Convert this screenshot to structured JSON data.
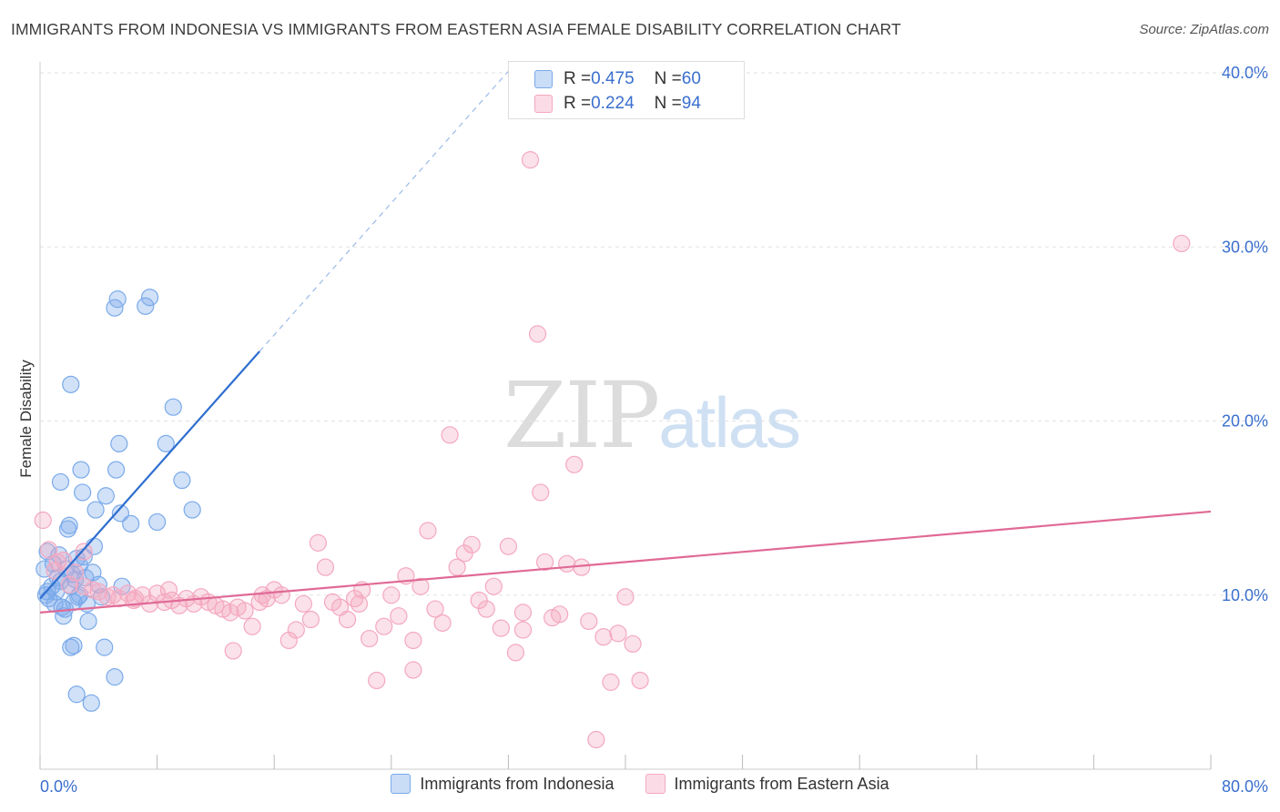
{
  "chart_data": {
    "type": "scatter",
    "title": "IMMIGRANTS FROM INDONESIA VS IMMIGRANTS FROM EASTERN ASIA FEMALE DISABILITY CORRELATION CHART",
    "source": "Source: ZipAtlas.com",
    "xlabel": "",
    "ylabel": "Female Disability",
    "xlim": [
      0,
      80
    ],
    "ylim": [
      0,
      40
    ],
    "x_tick_labels": [
      "0.0%",
      "80.0%"
    ],
    "y_ticks": [
      10,
      20,
      30,
      40
    ],
    "y_tick_labels": [
      "10.0%",
      "20.0%",
      "30.0%",
      "40.0%"
    ],
    "watermark": {
      "part1": "ZIP",
      "part2": "atlas"
    },
    "legend": {
      "rows": [
        {
          "r_label": "R = ",
          "r_value": "0.475",
          "n_label": "N = ",
          "n_value": "60"
        },
        {
          "r_label": "R = ",
          "r_value": "0.224",
          "n_label": "N = ",
          "n_value": "94"
        }
      ]
    },
    "series": [
      {
        "name": "Immigrants from Indonesia",
        "color": "#7aaaea",
        "line_color": "#2f6fcf",
        "trend": {
          "x0": 0,
          "y0": 9.8,
          "x1": 15,
          "y1": 24.0,
          "dash_to_x": 32
        },
        "points": [
          [
            0.3,
            11.5
          ],
          [
            0.5,
            12.5
          ],
          [
            0.4,
            10.0
          ],
          [
            0.6,
            9.8
          ],
          [
            0.8,
            10.5
          ],
          [
            0.9,
            11.8
          ],
          [
            1.0,
            9.5
          ],
          [
            1.1,
            10.2
          ],
          [
            1.2,
            11.0
          ],
          [
            1.3,
            12.3
          ],
          [
            1.4,
            10.8
          ],
          [
            1.5,
            9.3
          ],
          [
            1.6,
            8.8
          ],
          [
            1.7,
            9.2
          ],
          [
            1.8,
            11.5
          ],
          [
            1.9,
            13.8
          ],
          [
            2.0,
            14.0
          ],
          [
            2.1,
            10.5
          ],
          [
            2.2,
            11.2
          ],
          [
            2.3,
            9.6
          ],
          [
            2.4,
            10.9
          ],
          [
            2.5,
            12.1
          ],
          [
            2.6,
            9.9
          ],
          [
            2.7,
            11.7
          ],
          [
            1.4,
            16.5
          ],
          [
            2.1,
            22.1
          ],
          [
            2.1,
            7.0
          ],
          [
            2.3,
            7.1
          ],
          [
            2.5,
            4.3
          ],
          [
            2.7,
            10.0
          ],
          [
            2.8,
            17.2
          ],
          [
            2.9,
            15.9
          ],
          [
            3.0,
            12.2
          ],
          [
            3.1,
            11.0
          ],
          [
            3.2,
            9.5
          ],
          [
            3.3,
            8.5
          ],
          [
            3.5,
            3.8
          ],
          [
            3.6,
            11.3
          ],
          [
            3.7,
            12.8
          ],
          [
            3.8,
            14.9
          ],
          [
            4.0,
            10.6
          ],
          [
            4.2,
            9.9
          ],
          [
            4.4,
            7.0
          ],
          [
            4.5,
            15.7
          ],
          [
            5.1,
            5.3
          ],
          [
            5.2,
            17.2
          ],
          [
            5.5,
            14.7
          ],
          [
            5.6,
            10.5
          ],
          [
            5.1,
            26.5
          ],
          [
            5.3,
            27.0
          ],
          [
            5.4,
            18.7
          ],
          [
            6.2,
            14.1
          ],
          [
            7.2,
            26.6
          ],
          [
            7.5,
            27.1
          ],
          [
            8.0,
            14.2
          ],
          [
            8.6,
            18.7
          ],
          [
            9.1,
            20.8
          ],
          [
            9.7,
            16.6
          ],
          [
            10.4,
            14.9
          ],
          [
            0.5,
            10.2
          ]
        ]
      },
      {
        "name": "Immigrants from Eastern Asia",
        "color": "#f4a8c0",
        "line_color": "#e06a96",
        "trend": {
          "x0": 0,
          "y0": 9.0,
          "x1": 80,
          "y1": 14.8
        },
        "points": [
          [
            0.2,
            14.3
          ],
          [
            0.6,
            12.6
          ],
          [
            1.2,
            11.9
          ],
          [
            1.6,
            12.0
          ],
          [
            2.0,
            10.6
          ],
          [
            2.4,
            11.3
          ],
          [
            3.0,
            10.5
          ],
          [
            3.6,
            10.3
          ],
          [
            4.0,
            10.2
          ],
          [
            4.6,
            9.9
          ],
          [
            5.0,
            10.0
          ],
          [
            5.4,
            9.8
          ],
          [
            6.0,
            10.1
          ],
          [
            6.4,
            9.7
          ],
          [
            7.0,
            10.0
          ],
          [
            7.5,
            9.5
          ],
          [
            8.0,
            10.1
          ],
          [
            8.5,
            9.6
          ],
          [
            9.0,
            9.7
          ],
          [
            9.5,
            9.4
          ],
          [
            10.0,
            9.8
          ],
          [
            10.5,
            9.5
          ],
          [
            11.0,
            9.9
          ],
          [
            11.5,
            9.6
          ],
          [
            12.0,
            9.4
          ],
          [
            12.5,
            9.2
          ],
          [
            13.0,
            9.0
          ],
          [
            13.5,
            9.3
          ],
          [
            14.0,
            9.1
          ],
          [
            14.5,
            8.2
          ],
          [
            15.0,
            9.6
          ],
          [
            15.5,
            9.8
          ],
          [
            16.0,
            10.3
          ],
          [
            16.5,
            10.0
          ],
          [
            17.0,
            7.4
          ],
          [
            17.5,
            8.0
          ],
          [
            18.0,
            9.5
          ],
          [
            18.5,
            8.6
          ],
          [
            19.0,
            13.0
          ],
          [
            19.5,
            11.6
          ],
          [
            20.0,
            9.6
          ],
          [
            20.5,
            9.3
          ],
          [
            21.0,
            8.6
          ],
          [
            21.5,
            9.8
          ],
          [
            22.0,
            10.3
          ],
          [
            22.5,
            7.5
          ],
          [
            23.0,
            5.1
          ],
          [
            23.5,
            8.2
          ],
          [
            24.0,
            10.0
          ],
          [
            24.5,
            8.8
          ],
          [
            25.0,
            11.1
          ],
          [
            25.5,
            7.4
          ],
          [
            26.0,
            10.5
          ],
          [
            26.5,
            13.7
          ],
          [
            27.0,
            9.2
          ],
          [
            27.5,
            8.4
          ],
          [
            28.0,
            19.2
          ],
          [
            28.5,
            11.6
          ],
          [
            29.0,
            12.4
          ],
          [
            29.5,
            12.9
          ],
          [
            30.0,
            9.7
          ],
          [
            30.5,
            9.2
          ],
          [
            31.0,
            10.5
          ],
          [
            31.5,
            8.1
          ],
          [
            32.0,
            12.8
          ],
          [
            32.5,
            6.7
          ],
          [
            33.0,
            9.0
          ],
          [
            33.5,
            35.0
          ],
          [
            34.0,
            25.0
          ],
          [
            34.2,
            15.9
          ],
          [
            34.5,
            11.9
          ],
          [
            35.0,
            8.7
          ],
          [
            35.5,
            8.9
          ],
          [
            36.0,
            11.8
          ],
          [
            36.5,
            17.5
          ],
          [
            37.0,
            11.6
          ],
          [
            37.5,
            8.5
          ],
          [
            38.0,
            1.7
          ],
          [
            38.5,
            7.6
          ],
          [
            39.0,
            5.0
          ],
          [
            39.5,
            7.8
          ],
          [
            40.0,
            9.9
          ],
          [
            40.5,
            7.2
          ],
          [
            41.0,
            5.1
          ],
          [
            3.0,
            12.5
          ],
          [
            1.0,
            11.4
          ],
          [
            6.5,
            9.8
          ],
          [
            8.8,
            10.3
          ],
          [
            15.2,
            10.0
          ],
          [
            13.2,
            6.8
          ],
          [
            25.5,
            5.7
          ],
          [
            21.8,
            9.5
          ],
          [
            78.0,
            30.2
          ],
          [
            33.0,
            8.0
          ]
        ]
      }
    ]
  }
}
